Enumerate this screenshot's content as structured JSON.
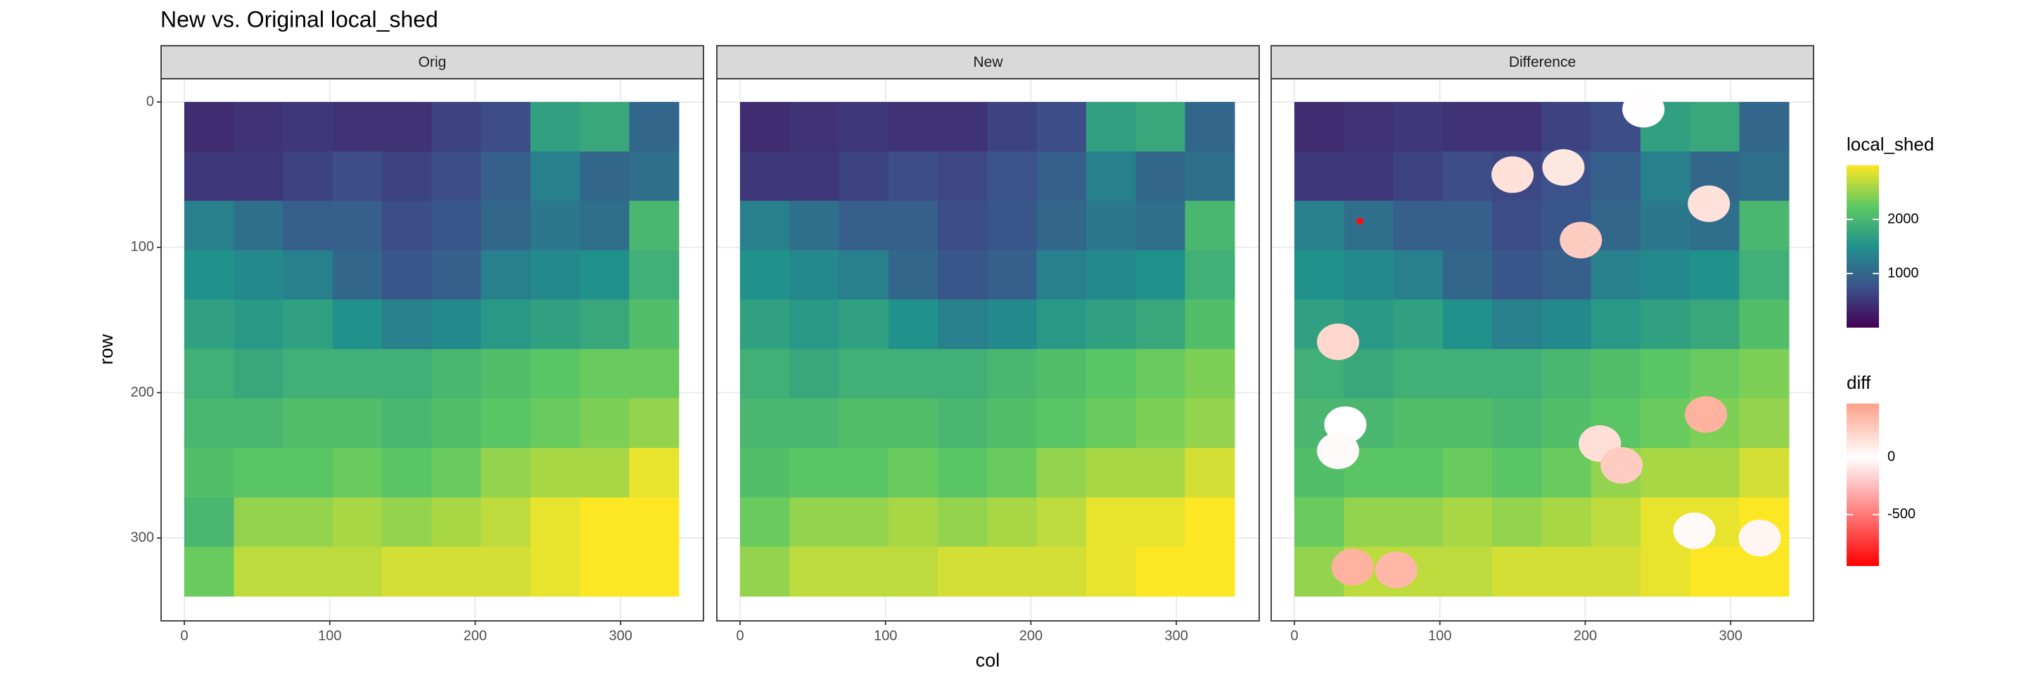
{
  "chart_data": {
    "type": "raster",
    "title": "New vs. Original local_shed",
    "x_label": "col",
    "y_label": "row",
    "xlim": [
      -16,
      357
    ],
    "ylim": [
      357,
      -16
    ],
    "xticks": [
      0,
      100,
      200,
      300
    ],
    "yticks": [
      0,
      100,
      200,
      300
    ],
    "grid": true,
    "x_edges": [
      0,
      34,
      68,
      102,
      136,
      170,
      204,
      238,
      272,
      306,
      340
    ],
    "y_edges": [
      0,
      34,
      68,
      102,
      136,
      170,
      204,
      238,
      272,
      306,
      340
    ],
    "panels": [
      {
        "name": "Orig",
        "values": [
          [
            400,
            450,
            500,
            450,
            450,
            600,
            700,
            1700,
            1800,
            1000
          ],
          [
            500,
            500,
            600,
            700,
            600,
            700,
            900,
            1300,
            1000,
            1100
          ],
          [
            1300,
            1100,
            900,
            900,
            700,
            800,
            1000,
            1200,
            1100,
            2000
          ],
          [
            1500,
            1400,
            1300,
            1000,
            800,
            900,
            1300,
            1400,
            1500,
            1900
          ],
          [
            1700,
            1600,
            1700,
            1500,
            1300,
            1400,
            1600,
            1700,
            1800,
            2100
          ],
          [
            1900,
            1800,
            1900,
            1900,
            1900,
            2000,
            2100,
            2200,
            2300,
            2300
          ],
          [
            2000,
            2000,
            2100,
            2100,
            2000,
            2100,
            2200,
            2300,
            2400,
            2500
          ],
          [
            2100,
            2200,
            2200,
            2300,
            2200,
            2300,
            2500,
            2600,
            2600,
            2900
          ],
          [
            2000,
            2500,
            2500,
            2600,
            2500,
            2600,
            2700,
            2900,
            3000,
            3000
          ],
          [
            2300,
            2700,
            2700,
            2700,
            2800,
            2800,
            2800,
            2900,
            3000,
            3000
          ]
        ]
      },
      {
        "name": "New",
        "values": [
          [
            400,
            450,
            500,
            450,
            450,
            600,
            700,
            1700,
            1800,
            1000
          ],
          [
            500,
            500,
            600,
            700,
            650,
            750,
            900,
            1300,
            1000,
            1100
          ],
          [
            1300,
            1100,
            900,
            900,
            700,
            800,
            1000,
            1200,
            1100,
            2000
          ],
          [
            1500,
            1400,
            1300,
            1000,
            800,
            900,
            1300,
            1400,
            1500,
            1900
          ],
          [
            1700,
            1600,
            1700,
            1500,
            1300,
            1400,
            1600,
            1700,
            1800,
            2100
          ],
          [
            1900,
            1800,
            1900,
            1900,
            1900,
            2000,
            2100,
            2200,
            2300,
            2400
          ],
          [
            2000,
            2000,
            2100,
            2100,
            2000,
            2100,
            2200,
            2300,
            2400,
            2500
          ],
          [
            2100,
            2200,
            2200,
            2300,
            2200,
            2300,
            2500,
            2600,
            2600,
            2800
          ],
          [
            2300,
            2500,
            2500,
            2600,
            2500,
            2600,
            2700,
            2900,
            2900,
            3000
          ],
          [
            2500,
            2700,
            2700,
            2700,
            2800,
            2800,
            2800,
            2900,
            3000,
            3000
          ]
        ]
      },
      {
        "name": "Difference",
        "values": [
          [
            400,
            450,
            500,
            450,
            450,
            600,
            700,
            1700,
            1800,
            1000
          ],
          [
            500,
            500,
            600,
            700,
            650,
            750,
            900,
            1300,
            1000,
            1100
          ],
          [
            1300,
            1100,
            900,
            900,
            700,
            800,
            1000,
            1200,
            1100,
            2000
          ],
          [
            1500,
            1400,
            1300,
            1000,
            800,
            900,
            1300,
            1400,
            1500,
            1900
          ],
          [
            1700,
            1600,
            1700,
            1500,
            1300,
            1400,
            1600,
            1700,
            1800,
            2100
          ],
          [
            1900,
            1800,
            1900,
            1900,
            1900,
            2000,
            2100,
            2200,
            2300,
            2400
          ],
          [
            2000,
            2000,
            2100,
            2100,
            2000,
            2100,
            2200,
            2300,
            2400,
            2500
          ],
          [
            2100,
            2200,
            2200,
            2300,
            2200,
            2300,
            2500,
            2600,
            2600,
            2800
          ],
          [
            2300,
            2500,
            2500,
            2600,
            2500,
            2600,
            2700,
            2900,
            2900,
            3000
          ],
          [
            2500,
            2700,
            2700,
            2700,
            2800,
            2800,
            2800,
            2900,
            3000,
            3000
          ]
        ]
      }
    ],
    "diff": {
      "col": [
        150,
        185,
        197,
        30,
        35,
        30,
        210,
        225,
        283,
        275,
        320,
        40,
        70,
        45,
        240,
        285
      ],
      "row": [
        50,
        45,
        95,
        165,
        222,
        240,
        235,
        250,
        215,
        295,
        300,
        320,
        322,
        82,
        5,
        70
      ],
      "values": [
        150,
        120,
        250,
        200,
        0,
        -20,
        160,
        250,
        380,
        30,
        50,
        380,
        350,
        -900,
        10,
        150
      ]
    },
    "fill_scale": {
      "title": "local_shed",
      "limits": [
        0,
        3000
      ],
      "ticks": [
        1000,
        2000
      ],
      "colors": [
        "#440154",
        "#3b528b",
        "#21918c",
        "#5ec962",
        "#fde725"
      ]
    },
    "diff_scale": {
      "title": "diff",
      "limits": [
        -950,
        470
      ],
      "ticks": [
        0,
        -500
      ],
      "colors": [
        "#ff0000",
        "#ffffff",
        "#ffa08a"
      ],
      "midpoint": 0
    }
  }
}
